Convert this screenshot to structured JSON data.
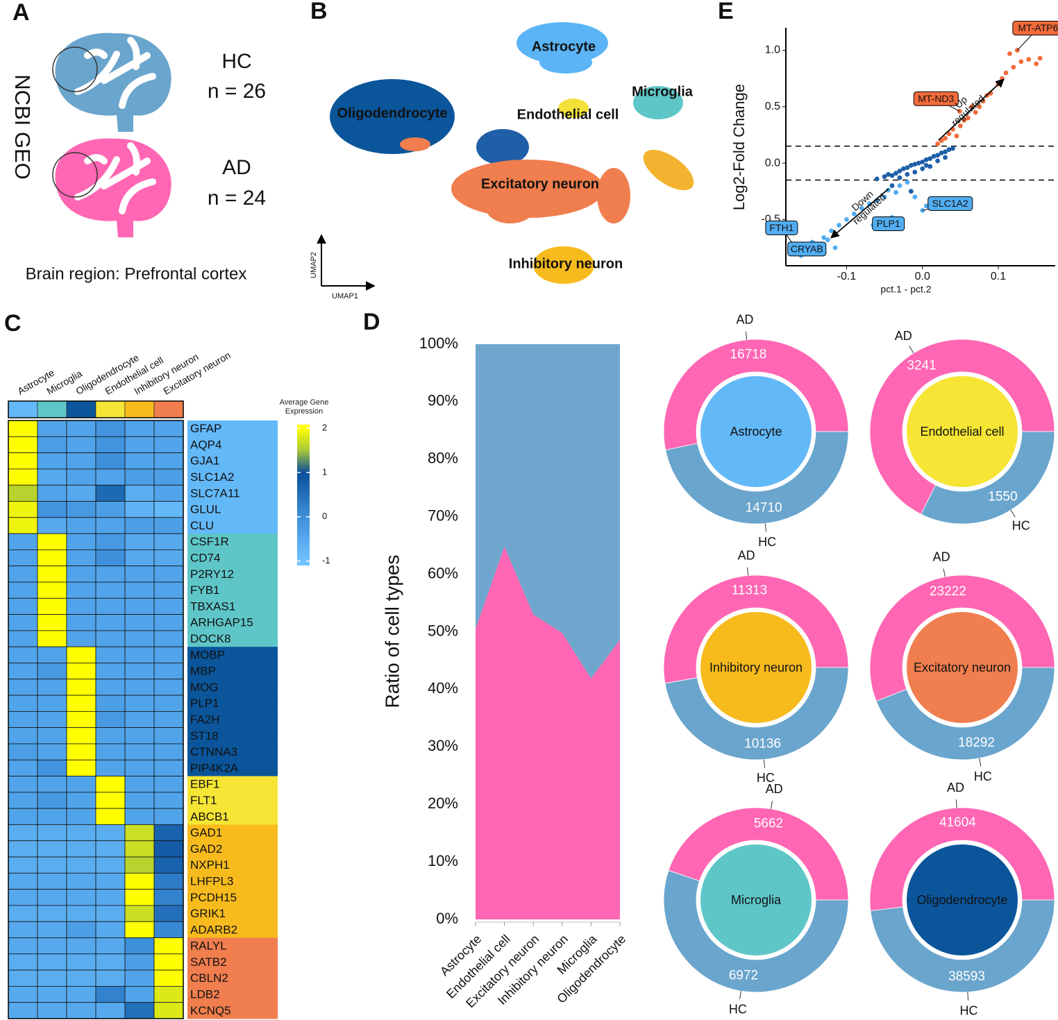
{
  "panel_labels": [
    "A",
    "B",
    "C",
    "D",
    "E"
  ],
  "panel_a": {
    "source": "NCBI GEO",
    "groups": [
      {
        "name": "HC",
        "n": "n = 26",
        "color": "#6aa5cd"
      },
      {
        "name": "AD",
        "n": "n = 24",
        "color": "#ff66b3"
      }
    ],
    "region": "Brain region: Prefrontal cortex"
  },
  "panel_b": {
    "x_label": "UMAP1",
    "y_label": "UMAP2",
    "clusters": [
      "Astrocyte",
      "Microglia",
      "Oligodendrocyte",
      "Endothelial cell",
      "Excitatory neuron",
      "Inhibitory neuron"
    ]
  },
  "chart_data": [
    {
      "type": "scatter",
      "y_label": "Log2-Fold Change",
      "x_label": "pct.1 - pct.2",
      "xlim": [
        -0.18,
        0.175
      ],
      "ylim": [
        -0.91,
        1.2
      ],
      "xticks": [
        -0.1,
        {
          "value": 0,
          "label": "0.0"
        },
        0.1
      ],
      "yticks": [
        -0.5,
        {
          "value": 0,
          "label": "0.0"
        },
        0.5,
        {
          "value": 1,
          "label": "1.0"
        }
      ],
      "hlines": [
        0.15,
        -0.15
      ],
      "series": [
        {
          "color": "#1f5fa8",
          "x": [
            -0.06,
            -0.05,
            -0.045,
            -0.04,
            -0.035,
            -0.03,
            -0.025,
            -0.02,
            -0.015,
            -0.01,
            -0.005,
            0,
            0.005,
            0.01,
            0.015,
            0.02,
            0.025,
            0.03,
            0.035,
            0.04,
            -0.03,
            -0.02,
            -0.01,
            0.0,
            0.01,
            0.02,
            -0.04,
            0.03,
            -0.015,
            0.005
          ],
          "values": [
            -0.14,
            -0.12,
            -0.1,
            -0.11,
            -0.09,
            -0.07,
            -0.05,
            -0.04,
            -0.02,
            -0.01,
            0.0,
            0.01,
            0.03,
            0.04,
            0.06,
            0.07,
            0.09,
            0.1,
            0.12,
            0.13,
            -0.13,
            -0.1,
            -0.08,
            -0.05,
            -0.03,
            0.02,
            -0.2,
            0.05,
            -0.25,
            -0.02
          ]
        },
        {
          "color": "#f26b3a",
          "x": [
            0.02,
            0.025,
            0.03,
            0.035,
            0.04,
            0.045,
            0.05,
            0.055,
            0.06,
            0.07,
            0.075,
            0.08,
            0.09,
            0.1,
            0.105,
            0.11,
            0.12,
            0.13,
            0.14,
            0.15,
            0.155,
            0.115,
            0.125,
            0.049,
            0.085,
            0.065
          ],
          "values": [
            0.17,
            0.2,
            0.22,
            0.26,
            0.3,
            0.24,
            0.33,
            0.38,
            0.4,
            0.45,
            0.5,
            0.55,
            0.62,
            0.7,
            0.75,
            0.8,
            0.85,
            0.9,
            0.92,
            0.88,
            0.93,
            0.97,
            1.0,
            0.46,
            0.6,
            0.5
          ]
        },
        {
          "color": "#52adf0",
          "x": [
            -0.02,
            -0.03,
            -0.035,
            -0.045,
            -0.05,
            -0.06,
            -0.07,
            -0.08,
            -0.09,
            -0.1,
            -0.11,
            -0.12,
            -0.13,
            -0.145,
            -0.16,
            -0.01,
            0.0,
            0.005,
            -0.04,
            -0.065,
            -0.115,
            -0.125
          ],
          "values": [
            -0.17,
            -0.2,
            -0.26,
            -0.24,
            -0.3,
            -0.33,
            -0.36,
            -0.4,
            -0.45,
            -0.5,
            -0.55,
            -0.6,
            -0.66,
            -0.7,
            -0.82,
            -0.3,
            -0.42,
            -0.38,
            -0.48,
            -0.55,
            -0.75,
            -0.68
          ]
        }
      ],
      "annotations": [
        {
          "text": "MT-ATP6",
          "series": 1,
          "point": 22
        },
        {
          "text": "MT-ND3",
          "series": 1,
          "point": 23
        },
        {
          "text": "FTH1",
          "series": 2,
          "point": 14
        },
        {
          "text": "CRYAB",
          "series": 2,
          "point": 13
        },
        {
          "text": "PLP1",
          "series": 2,
          "point": 19
        },
        {
          "text": "SLC1A2",
          "series": 2,
          "point": 16
        }
      ],
      "arrow_labels": [
        [
          "Up",
          "regulated"
        ],
        [
          "Down",
          "regulated"
        ]
      ]
    },
    {
      "type": "heatmap",
      "columns": [
        "Astrocyte",
        "Microglia",
        "Oligodendrocyte",
        "Endothelial cell",
        "Inhibitory neuron",
        "Excitatory neuron"
      ],
      "column_colors": [
        "#63b8f8",
        "#5fc6c8",
        "#0b559b",
        "#f6e534",
        "#f7bb1e",
        "#f07e4e"
      ],
      "rows": [
        "GFAP",
        "AQP4",
        "GJA1",
        "SLC1A2",
        "SLC7A11",
        "GLUL",
        "CLU",
        "CSF1R",
        "CD74",
        "P2RY12",
        "FYB1",
        "TBXAS1",
        "ARHGAP15",
        "DOCK8",
        "MOBP",
        "MBP",
        "MOG",
        "PLP1",
        "FA2H",
        "ST18",
        "CTNNA3",
        "PIP4K2A",
        "EBF1",
        "FLT1",
        "ABCB1",
        "GAD1",
        "GAD2",
        "NXPH1",
        "LHFPL3",
        "PCDH15",
        "GRIK1",
        "ADARB2",
        "RALYL",
        "SATB2",
        "CBLN2",
        "LDB2",
        "KCNQ5"
      ],
      "row_colors": [
        "#63b8f8",
        "#63b8f8",
        "#63b8f8",
        "#63b8f8",
        "#63b8f8",
        "#63b8f8",
        "#63b8f8",
        "#5fc6c8",
        "#5fc6c8",
        "#5fc6c8",
        "#5fc6c8",
        "#5fc6c8",
        "#5fc6c8",
        "#5fc6c8",
        "#0b559b",
        "#0b559b",
        "#0b559b",
        "#0b559b",
        "#0b559b",
        "#0b559b",
        "#0b559b",
        "#0b559b",
        "#f6e534",
        "#f6e534",
        "#f6e534",
        "#f7bb1e",
        "#f7bb1e",
        "#f7bb1e",
        "#f7bb1e",
        "#f7bb1e",
        "#f7bb1e",
        "#f7bb1e",
        "#f07e4e",
        "#f07e4e",
        "#f07e4e",
        "#f07e4e",
        "#f07e4e"
      ],
      "values": [
        [
          2,
          -0.4,
          -0.4,
          -0.1,
          -0.4,
          -0.4
        ],
        [
          2,
          -0.3,
          -0.4,
          -0.1,
          -0.4,
          -0.4
        ],
        [
          2,
          -0.4,
          -0.4,
          0,
          -0.4,
          -0.4
        ],
        [
          2,
          -0.5,
          -0.4,
          -0.4,
          -0.3,
          -0.3
        ],
        [
          1.6,
          -0.4,
          -0.5,
          0.6,
          -0.6,
          -0.4
        ],
        [
          1.9,
          -0.1,
          -0.2,
          -0.3,
          -0.7,
          -0.8
        ],
        [
          1.9,
          -0.5,
          -0.4,
          -0.4,
          -0.3,
          -0.3
        ],
        [
          -0.4,
          2,
          -0.4,
          -0.2,
          -0.5,
          -0.5
        ],
        [
          -0.4,
          2,
          -0.4,
          0,
          -0.5,
          -0.5
        ],
        [
          -0.4,
          2,
          -0.4,
          -0.4,
          -0.4,
          -0.4
        ],
        [
          -0.4,
          2,
          -0.4,
          -0.4,
          -0.4,
          -0.4
        ],
        [
          -0.4,
          2,
          -0.4,
          -0.4,
          -0.4,
          -0.4
        ],
        [
          -0.4,
          2,
          -0.4,
          -0.4,
          -0.4,
          -0.4
        ],
        [
          -0.4,
          2,
          -0.4,
          -0.4,
          -0.4,
          -0.4
        ],
        [
          -0.4,
          -0.4,
          2,
          -0.4,
          -0.4,
          -0.4
        ],
        [
          -0.4,
          -0.2,
          2,
          -0.4,
          -0.4,
          -0.4
        ],
        [
          -0.4,
          -0.4,
          2,
          -0.4,
          -0.4,
          -0.4
        ],
        [
          -0.4,
          -0.4,
          2,
          -0.3,
          -0.4,
          -0.4
        ],
        [
          -0.4,
          -0.4,
          2,
          -0.2,
          -0.4,
          -0.4
        ],
        [
          -0.4,
          -0.4,
          2,
          -0.4,
          -0.4,
          -0.4
        ],
        [
          -0.3,
          -0.4,
          2,
          -0.4,
          -0.4,
          -0.4
        ],
        [
          -0.4,
          -0.1,
          2,
          -0.4,
          -0.4,
          -0.4
        ],
        [
          -0.4,
          -0.4,
          -0.4,
          2,
          -0.4,
          -0.4
        ],
        [
          -0.4,
          -0.2,
          -0.4,
          2,
          -0.4,
          -0.4
        ],
        [
          -0.4,
          -0.4,
          -0.4,
          2,
          -0.4,
          -0.4
        ],
        [
          -0.6,
          -0.6,
          -0.6,
          -0.6,
          1.7,
          0.7
        ],
        [
          -0.6,
          -0.6,
          -0.6,
          -0.6,
          1.7,
          0.8
        ],
        [
          -0.6,
          -0.6,
          -0.6,
          -0.6,
          1.6,
          0.7
        ],
        [
          -0.5,
          -0.5,
          -0.5,
          -0.5,
          2,
          0.3
        ],
        [
          -0.5,
          -0.5,
          -0.5,
          -0.5,
          2,
          0.2
        ],
        [
          -0.6,
          -0.6,
          -0.6,
          -0.6,
          1.7,
          0.5
        ],
        [
          -0.5,
          -0.5,
          -0.3,
          -0.5,
          2,
          0.1
        ],
        [
          -0.5,
          -0.5,
          -0.5,
          -0.5,
          0,
          2
        ],
        [
          -0.6,
          -0.6,
          -0.6,
          -0.6,
          -0.3,
          2
        ],
        [
          -0.6,
          -0.6,
          -0.6,
          -0.6,
          -0.4,
          2
        ],
        [
          -0.5,
          -0.5,
          -0.5,
          0.2,
          -0.4,
          1.8
        ],
        [
          -0.5,
          -0.5,
          -0.5,
          -0.5,
          0.5,
          1.8
        ]
      ],
      "colorbar_title": "Average Gene Expression",
      "zlim": [
        -1.1,
        2.08
      ],
      "zticks": [
        2,
        1,
        0,
        -1
      ],
      "colorscale": [
        [
          -1,
          "#6ec3ff"
        ],
        [
          0,
          "#3d8fda"
        ],
        [
          1,
          "#0a4f99"
        ],
        [
          1.5,
          "#a8c83a"
        ],
        [
          2,
          "#ffff00"
        ]
      ]
    },
    {
      "type": "area",
      "stacked": true,
      "categories": [
        "Astrocyte",
        "Endothelial cell",
        "Excitatory neuron",
        "Inhibitory neuron",
        "Microglia",
        "Oligodendrocyte"
      ],
      "series": [
        {
          "color": "#ff66b3",
          "values": [
            50.5,
            64.8,
            53,
            49.8,
            41.9,
            48.6
          ]
        },
        {
          "color": "#6fa6cd",
          "values": [
            49.5,
            35.2,
            47,
            50.2,
            58.1,
            51.4
          ]
        }
      ],
      "y_label": "Ratio of cell types",
      "ylim": [
        0,
        100
      ],
      "yticks": [
        {
          "value": 0,
          "label": "0%"
        },
        {
          "value": 10,
          "label": "10%"
        },
        {
          "value": 20,
          "label": "20%"
        },
        {
          "value": 30,
          "label": "30%"
        },
        {
          "value": 40,
          "label": "40%"
        },
        {
          "value": 50,
          "label": "50%"
        },
        {
          "value": 60,
          "label": "60%"
        },
        {
          "value": 70,
          "label": "70%"
        },
        {
          "value": 80,
          "label": "80%"
        },
        {
          "value": 90,
          "label": "90%"
        },
        {
          "value": 100,
          "label": "100%"
        }
      ]
    },
    {
      "type": "pie",
      "donut": true,
      "categories": [
        "AD",
        "HC"
      ],
      "values": [
        16718,
        14710
      ],
      "colors": [
        "#ff66b3",
        "#6aa5cd"
      ],
      "center_label": "Astrocyte",
      "center_color": "#63b8f8"
    },
    {
      "type": "pie",
      "donut": true,
      "categories": [
        "AD",
        "HC"
      ],
      "values": [
        3241,
        1550
      ],
      "colors": [
        "#ff66b3",
        "#6aa5cd"
      ],
      "center_label": "Endothelial cell",
      "center_color": "#f6e534"
    },
    {
      "type": "pie",
      "donut": true,
      "categories": [
        "AD",
        "HC"
      ],
      "values": [
        11313,
        10136
      ],
      "colors": [
        "#ff66b3",
        "#6aa5cd"
      ],
      "center_label": "Inhibitory neuron",
      "center_color": "#f7bb1e"
    },
    {
      "type": "pie",
      "donut": true,
      "categories": [
        "AD",
        "HC"
      ],
      "values": [
        23222,
        18292
      ],
      "colors": [
        "#ff66b3",
        "#6aa5cd"
      ],
      "center_label": "Excitatory neuron",
      "center_color": "#f07e4e"
    },
    {
      "type": "pie",
      "donut": true,
      "categories": [
        "AD",
        "HC"
      ],
      "values": [
        5662,
        6972
      ],
      "colors": [
        "#ff66b3",
        "#6aa5cd"
      ],
      "center_label": "Microglia",
      "center_color": "#5fc6c8"
    },
    {
      "type": "pie",
      "donut": true,
      "categories": [
        "AD",
        "HC"
      ],
      "values": [
        41604,
        38593
      ],
      "colors": [
        "#ff66b3",
        "#6aa5cd"
      ],
      "center_label": "Oligodendrocyte",
      "center_color": "#0b559b"
    }
  ]
}
